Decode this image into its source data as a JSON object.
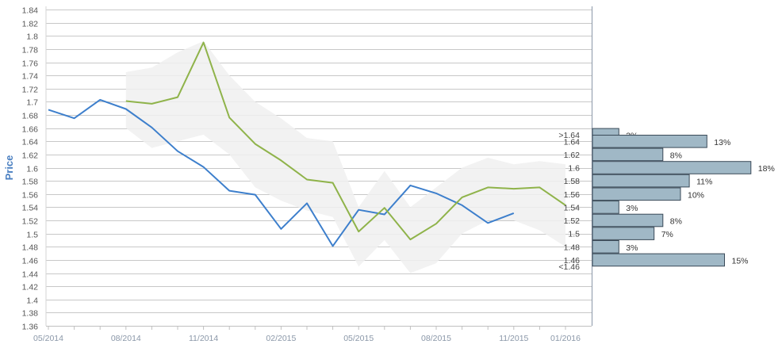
{
  "chart_data": {
    "type": "line",
    "ylabel": "Price",
    "xlabel": "",
    "ylim": [
      1.36,
      1.84
    ],
    "y_ticks": [
      "1.36",
      "1.38",
      "1.4",
      "1.42",
      "1.44",
      "1.46",
      "1.48",
      "1.5",
      "1.52",
      "1.54",
      "1.56",
      "1.58",
      "1.6",
      "1.62",
      "1.64",
      "1.66",
      "1.68",
      "1.7",
      "1.72",
      "1.74",
      "1.76",
      "1.78",
      "1.8",
      "1.82",
      "1.84"
    ],
    "x_tick_labels": [
      "05/2014",
      "08/2014",
      "11/2014",
      "02/2015",
      "05/2015",
      "08/2015",
      "11/2015",
      "01/2016"
    ],
    "grid": true,
    "x_months": [
      "05/2014",
      "06/2014",
      "07/2014",
      "08/2014",
      "09/2014",
      "10/2014",
      "11/2014",
      "12/2014",
      "01/2015",
      "02/2015",
      "03/2015",
      "04/2015",
      "05/2015",
      "06/2015",
      "07/2015",
      "08/2015",
      "09/2015",
      "10/2015",
      "11/2015",
      "12/2015",
      "01/2016"
    ],
    "series": [
      {
        "color": "#3d7fcc",
        "x": [
          "05/2014",
          "06/2014",
          "07/2014",
          "08/2014",
          "09/2014",
          "10/2014",
          "11/2014",
          "12/2014",
          "01/2015",
          "02/2015",
          "03/2015",
          "04/2015",
          "05/2015",
          "06/2015",
          "07/2015",
          "08/2015",
          "09/2015",
          "10/2015",
          "11/2015"
        ],
        "values": [
          1.688,
          1.675,
          1.703,
          1.689,
          1.661,
          1.625,
          1.601,
          1.565,
          1.559,
          1.507,
          1.546,
          1.481,
          1.536,
          1.529,
          1.573,
          1.561,
          1.543,
          1.516,
          1.531
        ]
      },
      {
        "color": "#8fb34a",
        "x": [
          "08/2014",
          "09/2014",
          "10/2014",
          "11/2014",
          "12/2014",
          "01/2015",
          "02/2015",
          "03/2015",
          "04/2015",
          "05/2015",
          "06/2015",
          "07/2015",
          "08/2015",
          "09/2015",
          "10/2015",
          "11/2015",
          "12/2015",
          "01/2016"
        ],
        "values": [
          1.701,
          1.697,
          1.707,
          1.79,
          1.676,
          1.636,
          1.611,
          1.582,
          1.577,
          1.503,
          1.539,
          1.491,
          1.515,
          1.555,
          1.57,
          1.568,
          1.57,
          1.543
        ]
      }
    ],
    "band": {
      "color": "#f0f0f0",
      "x": [
        "08/2014",
        "09/2014",
        "10/2014",
        "11/2014",
        "12/2014",
        "01/2015",
        "02/2015",
        "03/2015",
        "04/2015",
        "05/2015",
        "06/2015",
        "07/2015",
        "08/2015",
        "09/2015",
        "10/2015",
        "11/2015",
        "12/2015",
        "01/2016"
      ],
      "upper": [
        1.745,
        1.752,
        1.775,
        1.792,
        1.74,
        1.7,
        1.675,
        1.645,
        1.64,
        1.54,
        1.595,
        1.54,
        1.57,
        1.6,
        1.615,
        1.605,
        1.61,
        1.605
      ],
      "lower": [
        1.66,
        1.63,
        1.64,
        1.65,
        1.62,
        1.57,
        1.55,
        1.535,
        1.525,
        1.45,
        1.49,
        1.44,
        1.455,
        1.5,
        1.52,
        1.52,
        1.505,
        1.48
      ]
    },
    "histogram": {
      "color": "#a0b8c6",
      "border": "#3a4a58",
      "categories": [
        ">1.64",
        "1.64",
        "1.62",
        "1.6",
        "1.58",
        "1.56",
        "1.54",
        "1.52",
        "1.5",
        "1.48",
        "1.46",
        "<1.46"
      ],
      "bin_y": [
        1.65,
        1.64,
        1.62,
        1.6,
        1.58,
        1.56,
        1.54,
        1.52,
        1.5,
        1.48,
        1.46,
        1.45
      ],
      "percent": [
        3,
        13,
        8,
        18,
        11,
        10,
        3,
        8,
        7,
        3,
        15,
        null
      ],
      "labels": [
        "3%",
        "13%",
        "8%",
        "18%",
        "11%",
        "10%",
        "3%",
        "8%",
        "7%",
        "3%",
        "15%"
      ]
    }
  }
}
